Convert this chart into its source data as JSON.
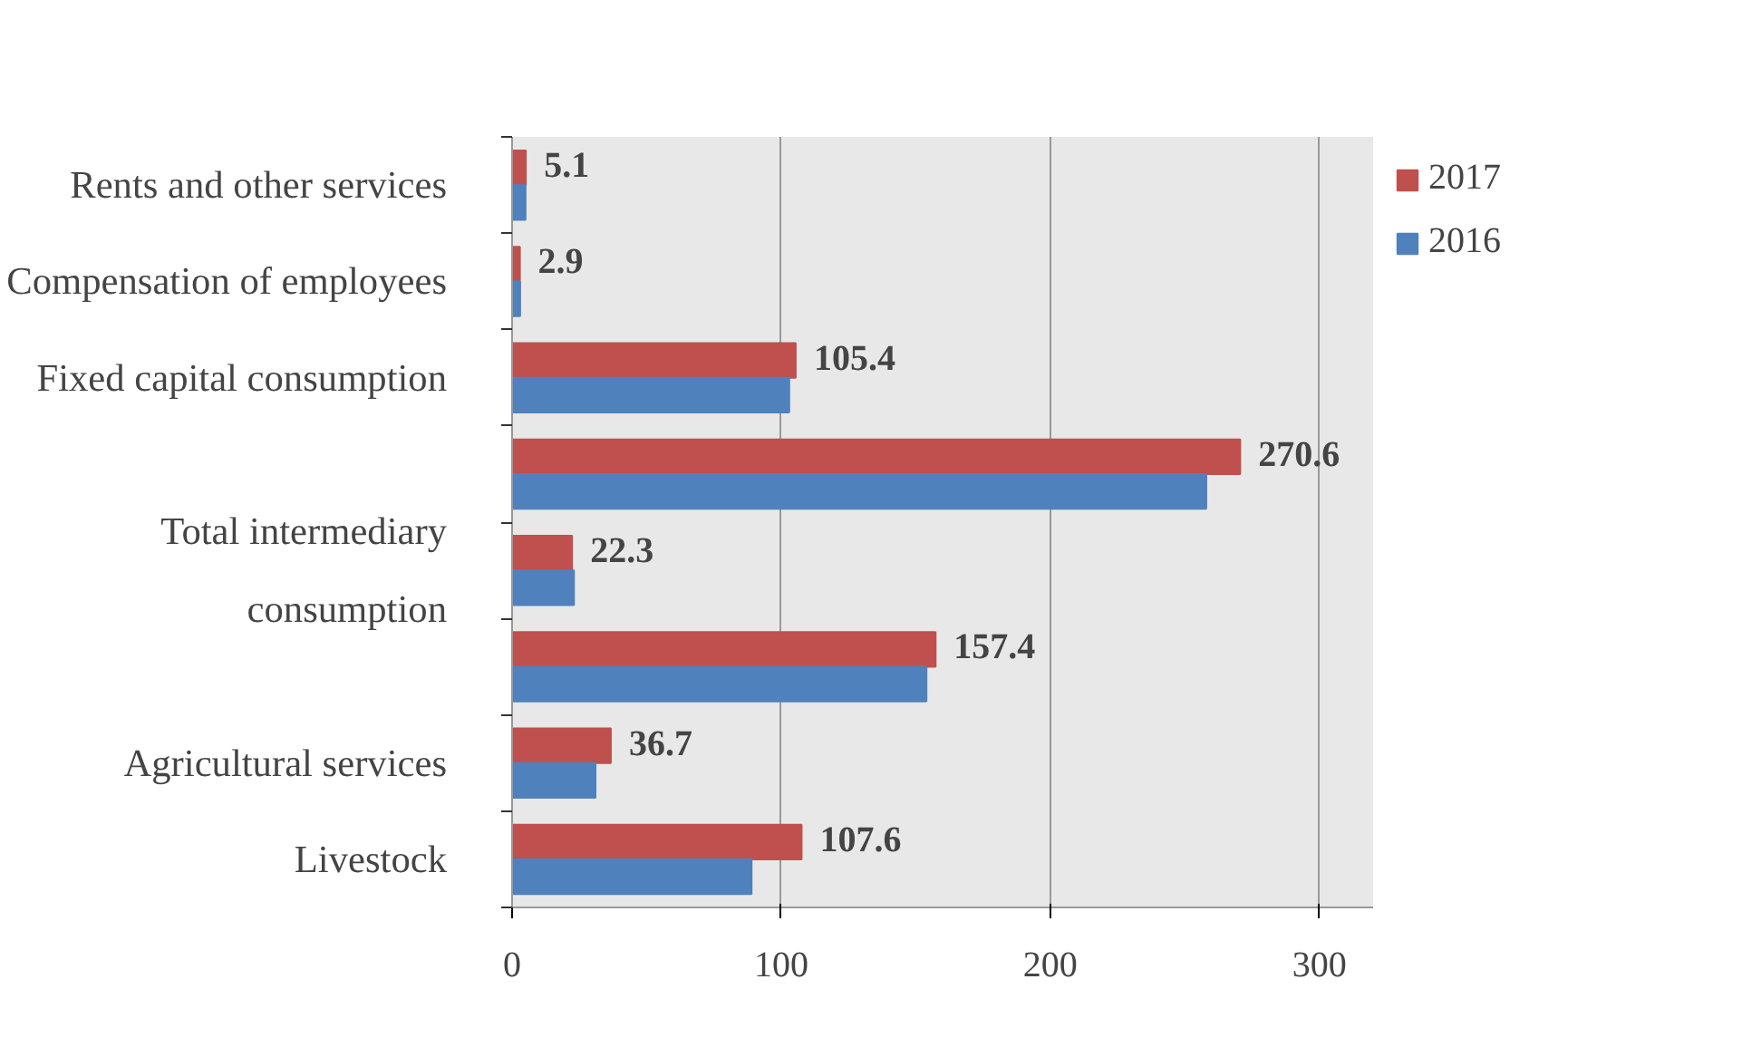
{
  "chart_data": {
    "type": "bar",
    "orientation": "horizontal",
    "categories": [
      "Rents and other services",
      "Compensation of employees",
      "Fixed capital consumption",
      null,
      "Total intermediary consumption",
      null,
      "Agricultural services",
      "Livestock"
    ],
    "series": [
      {
        "name": "2017",
        "color": "#c0504d",
        "values": [
          5.1,
          2.9,
          105.4,
          270.6,
          22.3,
          157.4,
          36.7,
          107.6
        ],
        "value_labels": [
          "5.1",
          "2.9",
          "105.4",
          "270.6",
          "22.3",
          "157.4",
          "36.7",
          "107.6"
        ]
      },
      {
        "name": "2016",
        "color": "#4f81bd",
        "values": [
          5,
          3,
          103,
          258,
          23,
          154,
          31,
          89
        ]
      }
    ],
    "xlim": [
      0,
      320
    ],
    "xticks": [
      0,
      100,
      200,
      300
    ],
    "grid": "x",
    "legend": "top right"
  }
}
